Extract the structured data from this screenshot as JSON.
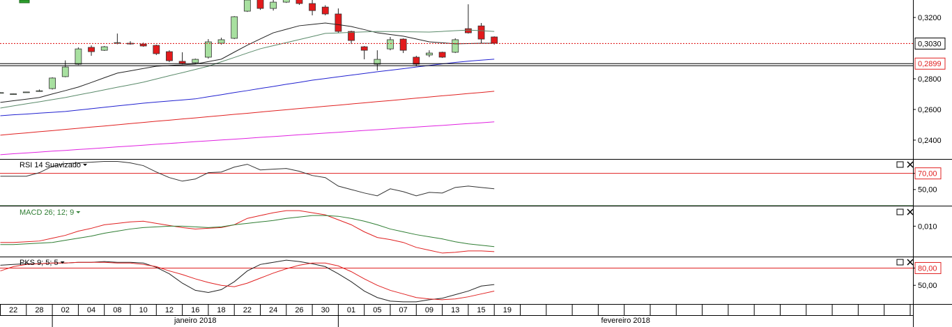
{
  "chart_data": [
    {
      "type": "candlestick",
      "categories": [
        null,
        "22",
        null,
        "28",
        null,
        "02",
        null,
        "04",
        null,
        "08",
        null,
        "10",
        null,
        "12",
        null,
        "16",
        null,
        "18",
        null,
        "22",
        null,
        "24",
        null,
        "26",
        null,
        "30",
        null,
        "01",
        null,
        "05",
        null,
        "07",
        null,
        "09",
        null,
        "13",
        null,
        "15",
        null,
        "19"
      ],
      "months": [
        "janeiro 2018",
        "fevereiro 2018"
      ],
      "open": [
        0.2708,
        0.27,
        0.2712,
        0.2718,
        0.2736,
        0.2814,
        0.2895,
        0.3005,
        0.2986,
        0.3032,
        0.3032,
        0.3027,
        0.3018,
        0.2977,
        0.2914,
        0.2905,
        0.2941,
        0.3032,
        0.3064,
        0.3241,
        0.332,
        0.3259,
        0.33,
        0.333,
        0.3291,
        0.3268,
        0.3223,
        0.3109,
        0.3009,
        0.2895,
        0.2995,
        0.3059,
        0.2941,
        0.2955,
        0.2973,
        0.2973,
        0.3127,
        0.3145,
        0.3073,
        null
      ],
      "high": [
        0.2712,
        0.2704,
        0.2716,
        0.273,
        0.281,
        0.292,
        0.3005,
        0.3018,
        0.3014,
        0.3095,
        0.3045,
        0.3036,
        0.3023,
        0.2986,
        0.2973,
        0.2932,
        0.3059,
        0.3068,
        0.3209,
        0.332,
        0.333,
        0.3314,
        0.334,
        0.334,
        0.332,
        0.328,
        0.3259,
        0.3114,
        0.3014,
        0.2986,
        0.3073,
        0.3064,
        0.295,
        0.2986,
        0.2977,
        0.3064,
        0.3286,
        0.3164,
        0.3077,
        null
      ],
      "low": [
        0.2705,
        0.2697,
        0.2709,
        0.2715,
        0.273,
        0.281,
        0.289,
        0.295,
        0.2982,
        0.3025,
        0.3023,
        0.3009,
        0.2955,
        0.2909,
        0.2895,
        0.29,
        0.2932,
        0.3023,
        0.3059,
        0.3236,
        0.325,
        0.3245,
        0.3295,
        0.3282,
        0.3214,
        0.3214,
        0.31,
        0.3027,
        0.2927,
        0.2855,
        0.2986,
        0.2968,
        0.2882,
        0.2941,
        0.2936,
        0.2968,
        0.3095,
        0.3032,
        0.3023,
        null
      ],
      "close": [
        0.271,
        0.2702,
        0.2714,
        0.2722,
        0.2805,
        0.2877,
        0.2995,
        0.2977,
        0.3009,
        0.3036,
        0.3027,
        0.3014,
        0.2964,
        0.2918,
        0.29,
        0.2927,
        0.3041,
        0.3055,
        0.3205,
        0.3314,
        0.3259,
        0.33,
        0.332,
        0.3291,
        0.3245,
        0.3223,
        0.3109,
        0.305,
        0.2986,
        0.2927,
        0.3055,
        0.2986,
        0.2895,
        0.2968,
        0.2941,
        0.3055,
        0.31,
        0.3059,
        0.3032,
        null
      ],
      "up_color": "#a8e0a0",
      "down_color": "#e31a1c",
      "overlays": [
        {
          "color": "#222222",
          "values": [
            0.2646,
            0.2657,
            0.2667,
            0.2678,
            0.2701,
            0.2723,
            0.2746,
            0.2776,
            0.2807,
            0.2837,
            0.2852,
            0.2867,
            0.2882,
            0.2887,
            0.2891,
            0.2896,
            0.2912,
            0.2928,
            0.2974,
            0.3019,
            0.306,
            0.31,
            0.3123,
            0.3146,
            0.3155,
            0.3164,
            0.3153,
            0.3141,
            0.3121,
            0.31,
            0.3089,
            0.3078,
            0.306,
            0.3041,
            0.3035,
            0.3028,
            0.303,
            0.3032,
            0.3032,
            null
          ]
        },
        {
          "color": "#5a8a6a",
          "values": [
            0.2609,
            0.2623,
            0.2637,
            0.265,
            0.2664,
            0.2678,
            0.2695,
            0.2711,
            0.2728,
            0.2745,
            0.2761,
            0.2778,
            0.2799,
            0.282,
            0.284,
            0.2861,
            0.2882,
            0.2911,
            0.2939,
            0.2968,
            0.2996,
            0.3016,
            0.3036,
            0.3056,
            0.3076,
            0.3096,
            0.3099,
            0.3103,
            0.3106,
            0.3109,
            0.3108,
            0.3107,
            0.3106,
            0.3105,
            0.3109,
            0.3114,
            0.3118,
            0.3114,
            0.3109,
            null
          ]
        },
        {
          "color": "#2020d0",
          "values": [
            0.2559,
            0.2565,
            0.257,
            0.2576,
            0.2581,
            0.2587,
            0.2596,
            0.2605,
            0.2614,
            0.2623,
            0.2632,
            0.2641,
            0.2648,
            0.2655,
            0.2662,
            0.2669,
            0.2683,
            0.2696,
            0.271,
            0.2723,
            0.2737,
            0.275,
            0.2764,
            0.2777,
            0.2791,
            0.2802,
            0.2813,
            0.2824,
            0.2835,
            0.2846,
            0.2856,
            0.2866,
            0.2877,
            0.2887,
            0.2897,
            0.2907,
            0.2915,
            0.2922,
            0.2928,
            null
          ]
        },
        {
          "color": "#e02020",
          "values": [
            0.2432,
            0.244,
            0.2447,
            0.2455,
            0.2462,
            0.247,
            0.2477,
            0.2485,
            0.2492,
            0.25,
            0.2508,
            0.2515,
            0.2523,
            0.253,
            0.2538,
            0.2545,
            0.2553,
            0.256,
            0.2568,
            0.2575,
            0.2583,
            0.2591,
            0.2598,
            0.2606,
            0.2613,
            0.2621,
            0.2628,
            0.2636,
            0.2643,
            0.2651,
            0.2658,
            0.2666,
            0.2674,
            0.2681,
            0.2689,
            0.2696,
            0.2704,
            0.2711,
            0.2719,
            null
          ]
        },
        {
          "color": "#e020e0",
          "values": [
            0.2305,
            0.2311,
            0.2316,
            0.2322,
            0.2328,
            0.2333,
            0.2339,
            0.2344,
            0.235,
            0.2356,
            0.2361,
            0.2367,
            0.2373,
            0.2378,
            0.2384,
            0.239,
            0.2395,
            0.2401,
            0.2406,
            0.2412,
            0.2418,
            0.2423,
            0.2429,
            0.2435,
            0.244,
            0.2446,
            0.2451,
            0.2457,
            0.2463,
            0.2468,
            0.2474,
            0.248,
            0.2485,
            0.2491,
            0.2496,
            0.2502,
            0.2508,
            0.2513,
            0.2519,
            null
          ]
        }
      ],
      "price_markers": [
        {
          "value": 0.303,
          "label": "0,3030",
          "color": "#000000",
          "line_color": "#e02020",
          "line_style": "dotted"
        },
        {
          "value": 0.2899,
          "label": "0,2899",
          "color": "#e02020",
          "line_color": "#000000",
          "line_style": "double"
        }
      ],
      "ylim": [
        0.2277,
        0.3314
      ],
      "yticks": [
        {
          "value": 0.32,
          "label": "0,3200"
        },
        {
          "value": 0.28,
          "label": "0,2800"
        },
        {
          "value": 0.26,
          "label": "0,2600"
        },
        {
          "value": 0.24,
          "label": "0,2400"
        }
      ]
    },
    {
      "type": "line",
      "title": "RSI 14 Suavizado",
      "title_color": "#000000",
      "series": [
        {
          "color": "#333333",
          "values": [
            66.5,
            66.5,
            66.5,
            70.9,
            78.7,
            82.2,
            83,
            83.9,
            84.8,
            84.8,
            83,
            79.6,
            71.7,
            64.8,
            60.4,
            63,
            70.9,
            71.7,
            77.8,
            81.3,
            74.3,
            75.2,
            76.1,
            72.6,
            67.4,
            64.8,
            54.3,
            50,
            45.7,
            42.2,
            50.9,
            47.4,
            42.2,
            46.5,
            45.7,
            52.6,
            54.3,
            52.6,
            50.9,
            null
          ]
        }
      ],
      "levels": [
        {
          "value": 70,
          "color": "#e02020"
        },
        {
          "value": 30,
          "color": "#2e7d32"
        }
      ],
      "ylim": [
        30,
        87
      ],
      "yticks": [
        {
          "value": 70,
          "label": "70,00"
        },
        {
          "value": 50,
          "label": "50,00"
        }
      ]
    },
    {
      "type": "line",
      "title": "MACD 26; 12; 9",
      "title_color": "#2e7d32",
      "series": [
        {
          "color": "#e02020",
          "values": [
            0.00655,
            0.00655,
            0.0067,
            0.00685,
            0.00745,
            0.00805,
            0.00895,
            0.00955,
            0.0103,
            0.0106,
            0.0109,
            0.01105,
            0.0106,
            0.01015,
            0.0097,
            0.0094,
            0.00955,
            0.0097,
            0.0103,
            0.01165,
            0.01225,
            0.01285,
            0.0133,
            0.0133,
            0.01285,
            0.0124,
            0.01135,
            0.0103,
            0.0088,
            0.0076,
            0.00715,
            0.00655,
            0.0055,
            0.0049,
            0.0043,
            0.00445,
            0.00475,
            0.00475,
            0.0046,
            null
          ]
        },
        {
          "color": "#2e7d32",
          "values": [
            0.0061,
            0.0061,
            0.00625,
            0.0064,
            0.00655,
            0.007,
            0.00745,
            0.0079,
            0.0085,
            0.00895,
            0.0094,
            0.0097,
            0.00985,
            0.01,
            0.01,
            0.00985,
            0.0097,
            0.00985,
            0.0103,
            0.0106,
            0.0109,
            0.0112,
            0.01165,
            0.01195,
            0.01225,
            0.01225,
            0.0121,
            0.01165,
            0.01105,
            0.0103,
            0.0094,
            0.0088,
            0.0082,
            0.00775,
            0.0073,
            0.0067,
            0.00625,
            0.00595,
            0.00565,
            null
          ]
        }
      ],
      "ylim": [
        0.00355,
        0.01405
      ],
      "yticks": [
        {
          "value": 0.01,
          "label": "0,010"
        }
      ]
    },
    {
      "type": "line",
      "title": "PKS 9; 5; 5",
      "title_color": "#000000",
      "series": [
        {
          "color": "#222222",
          "values": [
            85,
            86.25,
            87.5,
            87.5,
            88.75,
            88.75,
            90,
            90,
            91.25,
            90,
            90,
            88.75,
            81.25,
            70,
            53.75,
            41.25,
            37.5,
            42.5,
            56.25,
            75,
            86.25,
            90,
            93.75,
            91.25,
            87.5,
            82.5,
            70,
            56.25,
            40,
            28.75,
            22.5,
            21.25,
            21.25,
            25,
            27.5,
            33.75,
            40,
            48.75,
            51.25,
            null
          ]
        },
        {
          "color": "#e02020",
          "values": [
            75,
            82.5,
            86.25,
            87.5,
            88.75,
            88.75,
            90,
            90,
            90,
            88.75,
            88.75,
            86.25,
            82.5,
            75,
            68.75,
            61.25,
            55,
            50,
            47.5,
            53.75,
            62.5,
            71.25,
            78.75,
            85,
            88.75,
            88.75,
            83.75,
            73.75,
            61.25,
            50,
            41.25,
            35,
            28.75,
            26.25,
            25,
            26.25,
            30,
            35,
            40,
            null
          ]
        }
      ],
      "levels": [
        {
          "value": 80,
          "color": "#e02020"
        }
      ],
      "ylim": [
        17.5,
        98.75
      ],
      "yticks": [
        {
          "value": 80,
          "label": "80,00"
        },
        {
          "value": 50,
          "label": "50,00"
        }
      ]
    }
  ]
}
